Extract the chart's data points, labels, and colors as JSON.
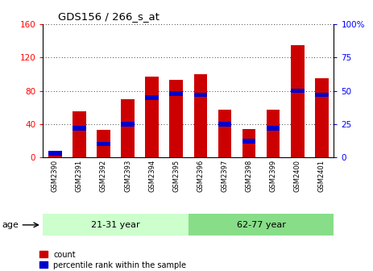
{
  "title": "GDS156 / 266_s_at",
  "samples": [
    "GSM2390",
    "GSM2391",
    "GSM2392",
    "GSM2393",
    "GSM2394",
    "GSM2395",
    "GSM2396",
    "GSM2397",
    "GSM2398",
    "GSM2399",
    "GSM2400",
    "GSM2401"
  ],
  "counts": [
    5,
    55,
    33,
    70,
    97,
    93,
    100,
    57,
    34,
    57,
    135,
    95
  ],
  "percentiles": [
    3,
    22,
    10,
    25,
    45,
    48,
    47,
    25,
    12,
    22,
    50,
    47
  ],
  "ylim_left": [
    0,
    160
  ],
  "ylim_right": [
    0,
    100
  ],
  "yticks_left": [
    0,
    40,
    80,
    120,
    160
  ],
  "yticks_right": [
    0,
    25,
    50,
    75,
    100
  ],
  "bar_color": "#cc0000",
  "pct_color": "#0000cc",
  "groups": [
    {
      "label": "21-31 year",
      "start": 0,
      "end": 6,
      "color": "#ccffcc"
    },
    {
      "label": "62-77 year",
      "start": 6,
      "end": 12,
      "color": "#88dd88"
    }
  ],
  "age_label": "age",
  "legend_count": "count",
  "legend_pct": "percentile rank within the sample",
  "grid_color": "black",
  "background_color": "#ffffff",
  "bar_width": 0.55
}
